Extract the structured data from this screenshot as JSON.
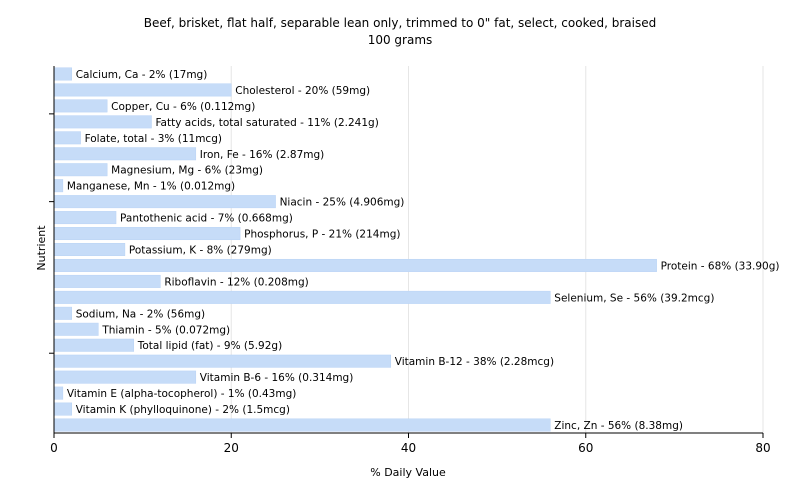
{
  "chart_data": {
    "type": "bar",
    "orientation": "horizontal",
    "title": "Beef, brisket, flat half, separable lean only, trimmed to 0\" fat, select, cooked, braised",
    "subtitle": "100 grams",
    "xlabel": "% Daily Value",
    "ylabel": "Nutrient",
    "xlim": [
      0,
      80
    ],
    "xticks": [
      "0",
      "20",
      "40",
      "60",
      "80"
    ],
    "grid": true,
    "categories": [
      "Calcium, Ca",
      "Cholesterol",
      "Copper, Cu",
      "Fatty acids, total saturated",
      "Folate, total",
      "Iron, Fe",
      "Magnesium, Mg",
      "Manganese, Mn",
      "Niacin",
      "Pantothenic acid",
      "Phosphorus, P",
      "Potassium, K",
      "Protein",
      "Riboflavin",
      "Selenium, Se",
      "Sodium, Na",
      "Thiamin",
      "Total lipid (fat)",
      "Vitamin B-12",
      "Vitamin B-6",
      "Vitamin E (alpha-tocopherol)",
      "Vitamin K (phylloquinone)",
      "Zinc, Zn"
    ],
    "values": [
      2,
      20,
      6,
      11,
      3,
      16,
      6,
      1,
      25,
      7,
      21,
      8,
      68,
      12,
      56,
      2,
      5,
      9,
      38,
      16,
      1,
      2,
      56
    ],
    "labels": [
      "Calcium, Ca - 2% (17mg)",
      "Cholesterol - 20% (59mg)",
      "Copper, Cu - 6% (0.112mg)",
      "Fatty acids, total saturated - 11% (2.241g)",
      "Folate, total - 3% (11mcg)",
      "Iron, Fe - 16% (2.87mg)",
      "Magnesium, Mg - 6% (23mg)",
      "Manganese, Mn - 1% (0.012mg)",
      "Niacin - 25% (4.906mg)",
      "Pantothenic acid - 7% (0.668mg)",
      "Phosphorus, P - 21% (214mg)",
      "Potassium, K - 8% (279mg)",
      "Protein - 68% (33.90g)",
      "Riboflavin - 12% (0.208mg)",
      "Selenium, Se - 56% (39.2mcg)",
      "Sodium, Na - 2% (56mg)",
      "Thiamin - 5% (0.072mg)",
      "Total lipid (fat) - 9% (5.92g)",
      "Vitamin B-12 - 38% (2.28mcg)",
      "Vitamin B-6 - 16% (0.314mg)",
      "Vitamin E (alpha-tocopherol) - 1% (0.43mg)",
      "Vitamin K (phylloquinone) - 2% (1.5mcg)",
      "Zinc, Zn - 56% (8.38mg)"
    ],
    "bar_color": "#c6dcf8"
  }
}
